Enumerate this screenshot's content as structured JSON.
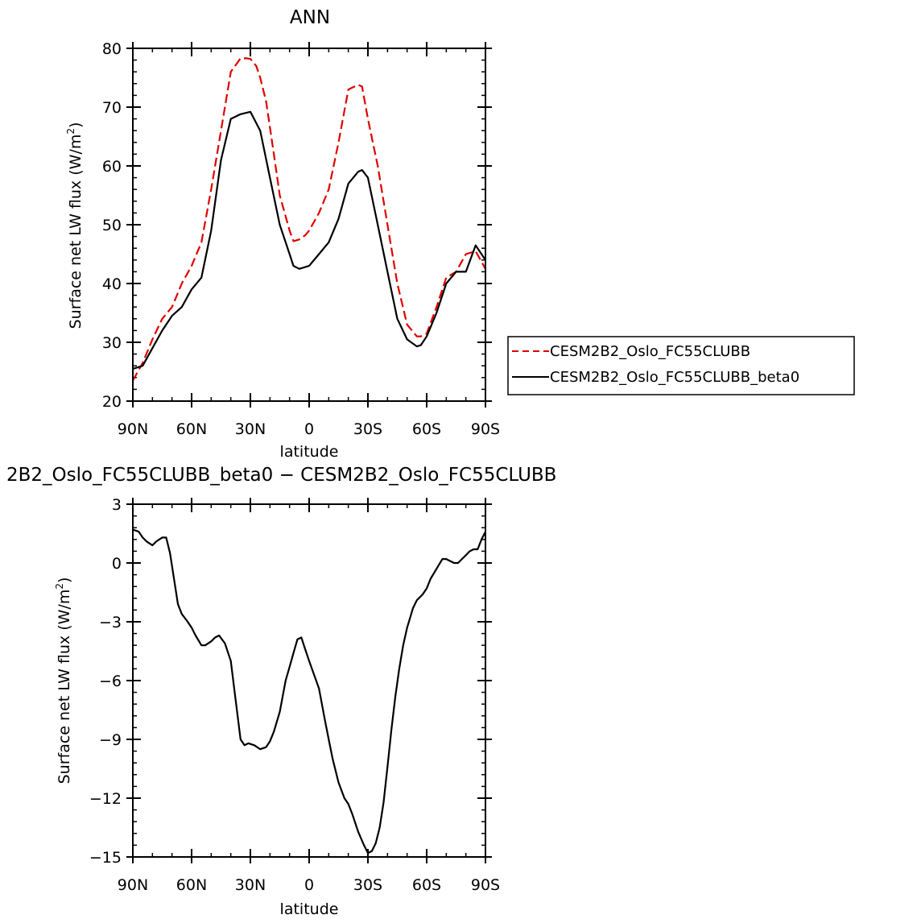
{
  "chart_data": [
    {
      "type": "line",
      "title": "ANN",
      "xlabel": "latitude",
      "ylabel": "Surface net LW flux (W/m",
      "ylabel_sup": "2",
      "ylabel_close": ")",
      "xlim": [
        -90,
        90
      ],
      "ylim": [
        20,
        80
      ],
      "x_ticks": [
        -90,
        -60,
        -30,
        0,
        30,
        60,
        90
      ],
      "x_tick_labels": [
        "90N",
        "60N",
        "30N",
        "0",
        "30S",
        "60S",
        "90S"
      ],
      "y_ticks": [
        20,
        30,
        40,
        50,
        60,
        70,
        80
      ],
      "y_tick_labels": [
        "20",
        "30",
        "40",
        "50",
        "60",
        "70",
        "80"
      ],
      "legend_position": "right",
      "series": [
        {
          "name": "CESM2B2_Oslo_FC55CLUBB",
          "color": "#e00000",
          "dash": "dashed",
          "x": [
            -90,
            -85,
            -80,
            -75,
            -70,
            -65,
            -60,
            -55,
            -50,
            -45,
            -40,
            -35,
            -32,
            -30,
            -27,
            -25,
            -22,
            -18,
            -15,
            -10,
            -8,
            -5,
            -2,
            0,
            5,
            10,
            15,
            20,
            25,
            27,
            30,
            35,
            40,
            45,
            50,
            55,
            57,
            60,
            65,
            70,
            75,
            80,
            85,
            90
          ],
          "y": [
            23.5,
            26.5,
            30.5,
            34,
            36,
            40,
            43,
            47,
            56,
            66,
            76,
            78.3,
            78.3,
            78.2,
            77,
            75,
            71,
            62,
            55,
            49,
            47.2,
            47.5,
            48.2,
            49,
            52,
            56,
            64,
            73,
            73.8,
            73.5,
            68,
            60,
            50,
            40,
            33,
            31,
            31,
            31.5,
            36,
            41,
            42,
            45,
            45.5,
            42.5
          ]
        },
        {
          "name": "CESM2B2_Oslo_FC55CLUBB_beta0",
          "color": "#000000",
          "dash": "solid",
          "x": [
            -90,
            -85,
            -80,
            -75,
            -70,
            -65,
            -60,
            -55,
            -50,
            -45,
            -40,
            -35,
            -30,
            -25,
            -20,
            -15,
            -10,
            -8,
            -5,
            -2,
            0,
            5,
            10,
            15,
            20,
            25,
            27,
            30,
            35,
            40,
            45,
            50,
            55,
            57,
            60,
            65,
            70,
            75,
            80,
            85,
            90
          ],
          "y": [
            25.5,
            26,
            29,
            32,
            34.5,
            36,
            39,
            41,
            49,
            61,
            68,
            68.8,
            69.2,
            66,
            58,
            50,
            45,
            43,
            42.5,
            42.8,
            43,
            45,
            47,
            51,
            57,
            59,
            59.3,
            58,
            50,
            42,
            34,
            30.5,
            29.3,
            29.5,
            31,
            35,
            40,
            42,
            42,
            46.5,
            44
          ]
        }
      ]
    },
    {
      "type": "line",
      "title": "2B2_Oslo_FC55CLUBB_beta0 − CESM2B2_Oslo_FC55CLUBB",
      "xlabel": "latitude",
      "ylabel": "Surface net LW flux (W/m",
      "ylabel_sup": "2",
      "ylabel_close": ")",
      "xlim": [
        -90,
        90
      ],
      "ylim": [
        -15,
        3
      ],
      "x_ticks": [
        -90,
        -60,
        -30,
        0,
        30,
        60,
        90
      ],
      "x_tick_labels": [
        "90N",
        "60N",
        "30N",
        "0",
        "30S",
        "60S",
        "90S"
      ],
      "y_ticks": [
        -15,
        -12,
        -9,
        -6,
        -3,
        0,
        3
      ],
      "y_tick_labels": [
        "−15",
        "−12",
        "−9",
        "−6",
        "−3",
        "0",
        "3"
      ],
      "series": [
        {
          "color": "#000000",
          "dash": "solid",
          "x": [
            -90,
            -87,
            -85,
            -83,
            -80,
            -78,
            -75,
            -73,
            -71,
            -69,
            -67,
            -65,
            -62,
            -60,
            -58,
            -55,
            -53,
            -50,
            -48,
            -46,
            -43,
            -40,
            -38,
            -35,
            -33,
            -31,
            -28,
            -25,
            -22,
            -20,
            -18,
            -15,
            -12,
            -10,
            -8,
            -6,
            -4,
            -2,
            0,
            5,
            8,
            10,
            12,
            15,
            18,
            20,
            22,
            25,
            28,
            30,
            32,
            34,
            36,
            38,
            40,
            42,
            44,
            46,
            48,
            50,
            53,
            55,
            58,
            60,
            62,
            65,
            68,
            70,
            72,
            74,
            76,
            78,
            80,
            82,
            84,
            86,
            88,
            90
          ],
          "y": [
            1.7,
            1.6,
            1.3,
            1.1,
            0.9,
            1.1,
            1.3,
            1.3,
            0.5,
            -0.8,
            -2.1,
            -2.6,
            -3,
            -3.3,
            -3.7,
            -4.2,
            -4.2,
            -4,
            -3.8,
            -3.7,
            -4.1,
            -5,
            -6.6,
            -9,
            -9.3,
            -9.2,
            -9.3,
            -9.5,
            -9.4,
            -9.1,
            -8.6,
            -7.6,
            -6,
            -5.3,
            -4.6,
            -3.9,
            -3.8,
            -4.4,
            -5,
            -6.4,
            -8,
            -9,
            -10,
            -11.2,
            -12,
            -12.3,
            -12.8,
            -13.7,
            -14.4,
            -14.8,
            -14.7,
            -14.3,
            -13.5,
            -12.2,
            -10.4,
            -8.5,
            -6.8,
            -5.4,
            -4.2,
            -3.3,
            -2.3,
            -1.9,
            -1.6,
            -1.3,
            -0.8,
            -0.3,
            0.2,
            0.2,
            0.1,
            0,
            0,
            0.2,
            0.4,
            0.6,
            0.7,
            0.7,
            1.2,
            1.6
          ]
        }
      ]
    }
  ]
}
